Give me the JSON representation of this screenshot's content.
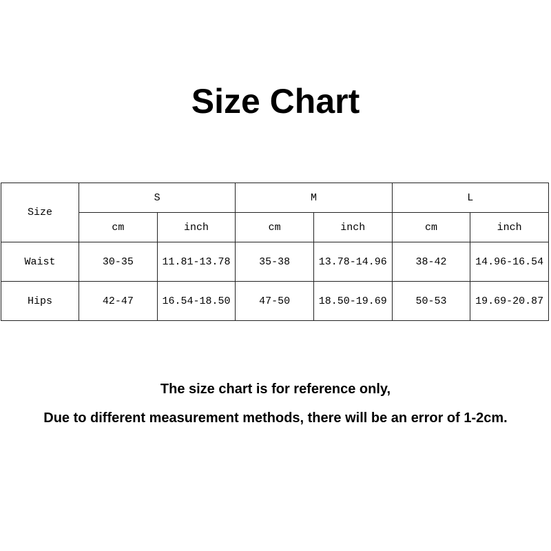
{
  "title": "Size Chart",
  "table": {
    "corner": "Size",
    "sizes": [
      "S",
      "M",
      "L"
    ],
    "units": [
      "cm",
      "inch",
      "cm",
      "inch",
      "cm",
      "inch"
    ],
    "rows": [
      {
        "label": "Waist",
        "values": [
          "30-35",
          "11.81-13.78",
          "35-38",
          "13.78-14.96",
          "38-42",
          "14.96-16.54"
        ]
      },
      {
        "label": "Hips",
        "values": [
          "42-47",
          "16.54-18.50",
          "47-50",
          "18.50-19.69",
          "50-53",
          "19.69-20.87"
        ]
      }
    ]
  },
  "notes": [
    "The size chart is for reference only,",
    "Due to different measurement methods, there will be an error of 1-2cm."
  ]
}
